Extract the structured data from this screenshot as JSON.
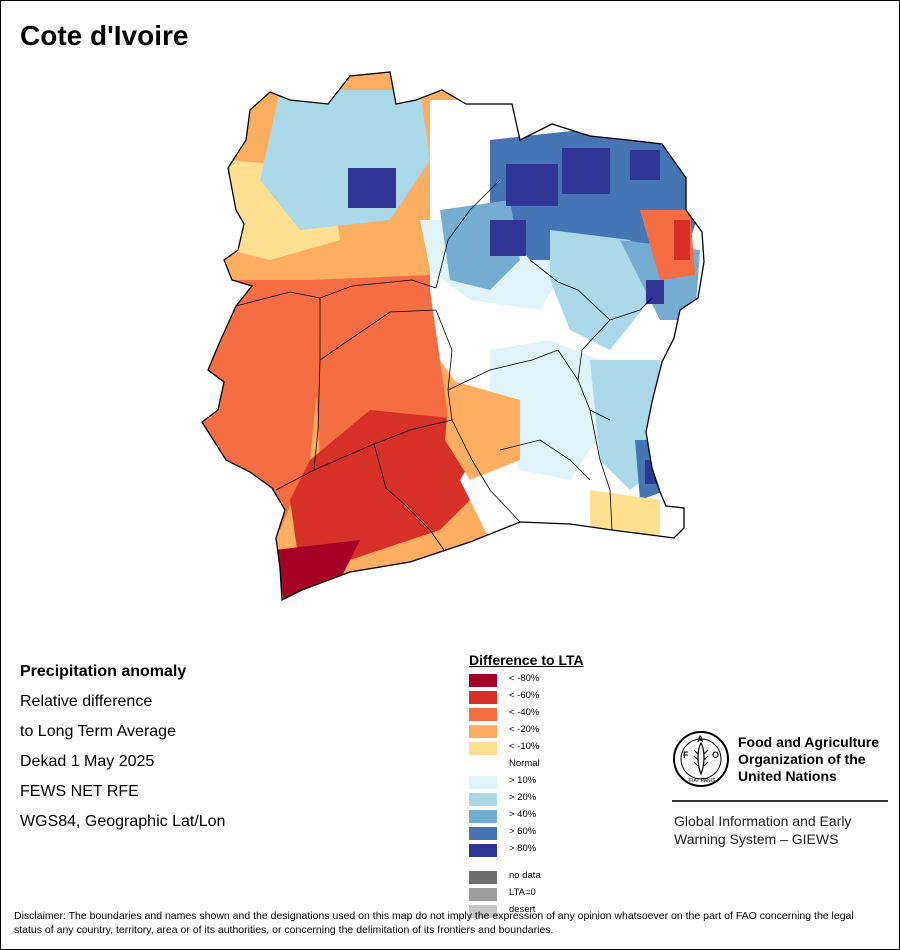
{
  "title": "Cote d'Ivoire",
  "info": {
    "heading": "Precipitation anomaly",
    "line1": "Relative difference",
    "line2": "to Long Term Average",
    "period": "Dekad 1 May 2025",
    "source": "FEWS NET RFE",
    "projection": "WGS84, Geographic Lat/Lon"
  },
  "legend": {
    "title": "Difference to LTA",
    "items": [
      {
        "label": "< -80%",
        "color": "#a50026"
      },
      {
        "label": "< -60%",
        "color": "#d73027"
      },
      {
        "label": "< -40%",
        "color": "#f46d43"
      },
      {
        "label": "< -20%",
        "color": "#fdae61"
      },
      {
        "label": "< -10%",
        "color": "#fee090"
      },
      {
        "label": "Normal",
        "color": "#ffffff"
      },
      {
        "label": "> 10%",
        "color": "#e0f3f8"
      },
      {
        "label": "> 20%",
        "color": "#abd9e9"
      },
      {
        "label": "> 40%",
        "color": "#74add1"
      },
      {
        "label": "> 60%",
        "color": "#4575b4"
      },
      {
        "label": "> 80%",
        "color": "#313695"
      }
    ],
    "extra": [
      {
        "label": "no data",
        "color": "#6e6e6e"
      },
      {
        "label": "LTA=0",
        "color": "#9c9c9c"
      },
      {
        "label": "desert",
        "color": "#c8c8c8"
      }
    ]
  },
  "fao": {
    "logo_text": "FAO",
    "logo_motto": "FIAT PANIS",
    "name1": "Food and Agriculture",
    "name2": "Organization of the",
    "name3": "United Nations",
    "system1": "Global Information and Early",
    "system2": "Warning System – GIEWS"
  },
  "disclaimer": "Disclaimer: The boundaries and names shown and the designations used on this map do not imply the expression of any opinion whatsoever on the part of FAO concerning the legal status of any country, territory, area or of its authorities, or concerning the delimitation of its frontiers and boundaries."
}
